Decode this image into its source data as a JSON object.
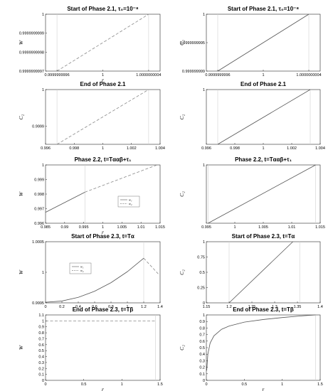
{
  "chart_data": [
    {
      "id": "p1",
      "type": "line",
      "title": "Start of Phase 2.1,  τ₀=10⁻⁸",
      "xlabel": "r",
      "ylabel": "W",
      "xlim": [
        0.9999999995,
        1.0000000005
      ],
      "ylim": [
        0.9999999997,
        1.0
      ],
      "xticks": [
        0.9999999996,
        1.0,
        1.0000000004
      ],
      "xticklabels": [
        "0.9999999996",
        "1",
        "1.0000000004"
      ],
      "yticks": [
        0.9999999997,
        0.9999999998,
        0.9999999999,
        1.0
      ],
      "yticklabels": [
        "0.9999999997",
        "0.9999999998",
        "0.9999999999",
        "1"
      ],
      "vlines": [
        0.9999999996,
        1.0000000004
      ],
      "series": [
        {
          "style": "dashed",
          "x": [
            0.9999999996,
            1.0000000004
          ],
          "y": [
            0.9999999997,
            1.0
          ]
        }
      ]
    },
    {
      "id": "p2",
      "type": "line",
      "title": "Start of Phase 2.1,  τ₀=10⁻⁸",
      "xlabel": "",
      "ylabel": "C₂",
      "xlim": [
        0.9999999995,
        1.0000000005
      ],
      "ylim": [
        0.999999999,
        1.0
      ],
      "xticks": [
        0.9999999996,
        1.0,
        1.0000000004
      ],
      "xticklabels": [
        "0.9999999996",
        "1",
        "1.0000000004"
      ],
      "yticks": [
        0.999999999,
        0.9999999995,
        1.0
      ],
      "yticklabels": [
        "0.999999999",
        "0.9999999995",
        "1"
      ],
      "vlines": [
        0.9999999996,
        1.0000000004
      ],
      "series": [
        {
          "style": "solid",
          "x": [
            0.9999999996,
            1.0000000004
          ],
          "y": [
            0.999999999,
            1.0
          ]
        }
      ]
    },
    {
      "id": "p3",
      "type": "line",
      "title": "End of Phase 2.1",
      "xlabel": "",
      "ylabel": "C₂",
      "xlim": [
        0.996,
        1.004
      ],
      "ylim": [
        0.99985,
        1.0
      ],
      "xticks": [
        0.996,
        0.998,
        1.0,
        1.002,
        1.004
      ],
      "xticklabels": [
        "0.996",
        "0.998",
        "1",
        "1.002",
        "1.004"
      ],
      "yticks": [
        0.9999,
        1.0
      ],
      "yticklabels": [
        "0.9999",
        "1"
      ],
      "vlines": [
        0.9968,
        1.0032
      ],
      "series": [
        {
          "style": "dashed",
          "x": [
            0.9968,
            1.0032
          ],
          "y": [
            0.99985,
            1.0
          ]
        }
      ]
    },
    {
      "id": "p4",
      "type": "line",
      "title": "End of Phase 2.1",
      "xlabel": "",
      "ylabel": "C₂",
      "xlim": [
        0.996,
        1.004
      ],
      "ylim": [
        0.9995,
        1.0
      ],
      "xticks": [
        0.996,
        0.998,
        1.0,
        1.002,
        1.004
      ],
      "xticklabels": [
        "0.996",
        "0.998",
        "1",
        "1.002",
        "1.004"
      ],
      "yticks": [
        1.0
      ],
      "yticklabels": [
        "1"
      ],
      "vlines": [
        0.9968,
        1.0033
      ],
      "series": [
        {
          "style": "solid",
          "x": [
            0.9968,
            1.0033
          ],
          "y": [
            0.9995,
            1.0
          ]
        }
      ]
    },
    {
      "id": "p5",
      "type": "line",
      "title": "Phase 2.2, t=Tααβ+τ₁",
      "xlabel": "r",
      "ylabel": "W",
      "xlim": [
        0.985,
        1.015
      ],
      "ylim": [
        0.996,
        1.0
      ],
      "xticks": [
        0.985,
        0.99,
        0.995,
        1.0,
        1.005,
        1.01,
        1.015
      ],
      "xticklabels": [
        "0.985",
        "0.99",
        "0.995",
        "1",
        "1.005",
        "1.01",
        "1.015"
      ],
      "yticks": [
        0.996,
        0.997,
        0.998,
        0.999,
        1.0
      ],
      "yticklabels": [
        "0.996",
        "0.997",
        "0.998",
        "0.999",
        "1"
      ],
      "vlines": [
        0.9953
      ],
      "legend": [
        "w₁",
        "w₂"
      ],
      "series": [
        {
          "name": "w₁",
          "style": "solid",
          "x": [
            0.985,
            0.9953
          ],
          "y": [
            0.99675,
            0.99813
          ]
        },
        {
          "name": "w₂",
          "style": "dashed",
          "x": [
            0.9953,
            1.0142
          ],
          "y": [
            0.99813,
            1.0
          ]
        }
      ]
    },
    {
      "id": "p6",
      "type": "line",
      "title": "Phase 2.2, t=Tααβ+τ₁",
      "xlabel": "",
      "ylabel": "C₂",
      "xlim": [
        0.995,
        1.015
      ],
      "ylim": [
        0.0,
        1.0
      ],
      "xticks": [
        0.995,
        1.0,
        1.005,
        1.01,
        1.015
      ],
      "xticklabels": [
        "0.995",
        "1",
        "1.005",
        "1.01",
        "1.015"
      ],
      "yticks": [
        1.0
      ],
      "yticklabels": [
        "1"
      ],
      "vlines": [
        0.9953,
        1.0142
      ],
      "series": [
        {
          "style": "solid",
          "x": [
            0.9953,
            1.0142
          ],
          "y": [
            0.0,
            1.0
          ]
        }
      ]
    },
    {
      "id": "p7",
      "type": "line",
      "title": "Start of Phase 2.3, t=Tα",
      "xlabel": "",
      "ylabel": "W",
      "xlim": [
        0.0,
        1.4
      ],
      "ylim": [
        0.9995,
        1.0005
      ],
      "xticks": [
        0.0,
        0.2,
        0.4,
        0.6,
        0.8,
        1.0,
        1.2,
        1.4
      ],
      "xticklabels": [
        "0",
        "0.2",
        "0.4",
        "0.6",
        "0.8",
        "1",
        "1.2",
        "1.4"
      ],
      "yticks": [
        0.9995,
        1.0,
        1.0005
      ],
      "yticklabels": [
        "0.9995",
        "1",
        "1.0005"
      ],
      "vlines": [
        1.2
      ],
      "legend": [
        "w₁",
        "w₂"
      ],
      "series": [
        {
          "name": "w₁",
          "style": "solid",
          "x": [
            0.0,
            0.2,
            0.4,
            0.6,
            0.8,
            1.0,
            1.2
          ],
          "y": [
            0.99951,
            0.99953,
            0.99959,
            0.99969,
            0.99983,
            1.00001,
            1.00023
          ]
        },
        {
          "name": "w₂",
          "style": "dashed",
          "x": [
            1.2,
            1.38
          ],
          "y": [
            1.00023,
            0.99997
          ]
        }
      ]
    },
    {
      "id": "p8",
      "type": "line",
      "title": "Start of Phase 2.3, t=Tα",
      "xlabel": "",
      "ylabel": "C₂",
      "xlim": [
        1.15,
        1.4
      ],
      "ylim": [
        0.0,
        1.0
      ],
      "xticks": [
        1.15,
        1.2,
        1.25,
        1.3,
        1.35,
        1.4
      ],
      "xticklabels": [
        "1.15",
        "1.2",
        "1.25",
        "1.3",
        "1.35",
        "1.4"
      ],
      "yticks": [
        0.0,
        0.25,
        0.5,
        0.75,
        1.0
      ],
      "yticklabels": [
        "0",
        "0.25",
        "0.5",
        "0.75",
        "1"
      ],
      "vlines": [
        1.2,
        1.355
      ],
      "series": [
        {
          "style": "solid",
          "x": [
            1.2,
            1.34
          ],
          "y": [
            0.0,
            1.0
          ]
        }
      ]
    },
    {
      "id": "p9",
      "type": "line",
      "title": "End of Phase 2.3, t=Tβ",
      "xlabel": "r",
      "ylabel": "W",
      "xlim": [
        0.0,
        1.5
      ],
      "ylim": [
        0.0,
        1.1
      ],
      "xticks": [
        0.0,
        0.5,
        1.0,
        1.5
      ],
      "xticklabels": [
        "0",
        "0.5",
        "1",
        "1.5"
      ],
      "yticks": [
        0.0,
        0.1,
        0.2,
        0.3,
        0.4,
        0.5,
        0.6,
        0.7,
        0.8,
        0.9,
        1.0,
        1.1
      ],
      "yticklabels": [
        "0",
        "0.1",
        "0.2",
        "0.3",
        "0.4",
        "0.5",
        "0.6",
        "0.7",
        "0.8",
        "0.9",
        "1",
        "1.1"
      ],
      "vlines": [
        1.44
      ],
      "series": [
        {
          "style": "dashed",
          "x": [
            0.0,
            1.44
          ],
          "y": [
            1.0,
            1.0
          ]
        }
      ]
    },
    {
      "id": "p10",
      "type": "line",
      "title": "End of Phase 2.3, t=Tβ",
      "xlabel": "r",
      "ylabel": "C₂",
      "xlim": [
        0.0,
        1.5
      ],
      "ylim": [
        0.0,
        1.0
      ],
      "xticks": [
        0.0,
        0.5,
        1.0,
        1.5
      ],
      "xticklabels": [
        "0",
        "0.5",
        "1",
        "1.5"
      ],
      "yticks": [
        0.0,
        0.1,
        0.2,
        0.3,
        0.4,
        0.5,
        0.6,
        0.7,
        0.8,
        0.9,
        1.0
      ],
      "yticklabels": [
        "0",
        "0.1",
        "0.2",
        "0.3",
        "0.4",
        "0.5",
        "0.6",
        "0.7",
        "0.8",
        "0.9",
        "1"
      ],
      "vlines": [
        1.44
      ],
      "series": [
        {
          "style": "solid",
          "x": [
            0.005,
            0.02,
            0.05,
            0.1,
            0.2,
            0.3,
            0.5,
            0.75,
            1.0,
            1.25,
            1.44
          ],
          "y": [
            0.15,
            0.4,
            0.57,
            0.68,
            0.78,
            0.83,
            0.89,
            0.93,
            0.96,
            0.985,
            1.0
          ]
        }
      ]
    }
  ]
}
